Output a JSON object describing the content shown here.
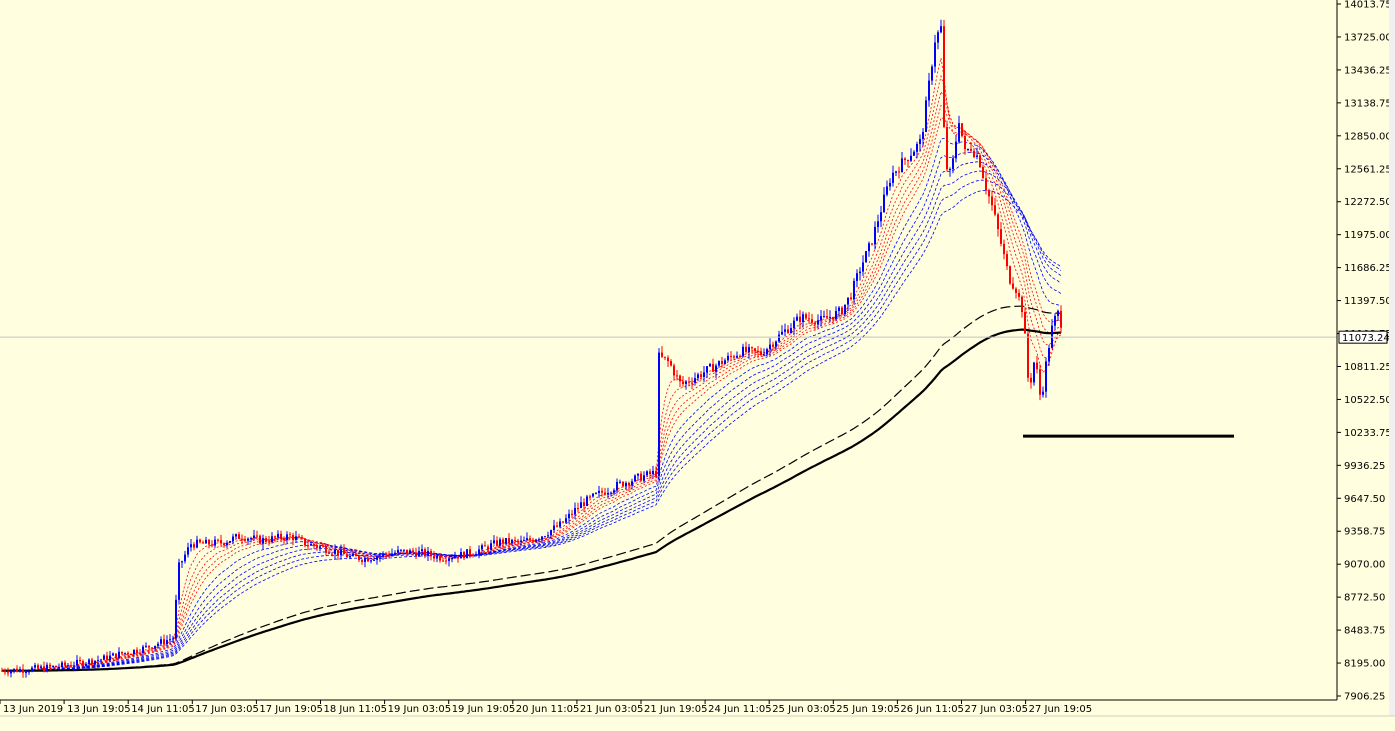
{
  "colors": {
    "background": "#ffffe0",
    "bull_candle": "#0000ff",
    "bear_candle": "#ff0000",
    "axis": "#000000",
    "current_price_line": "#c0c0c0",
    "ma_fast": "#ff0000",
    "ma_slow": "#0000ff",
    "ma_long": "#000000"
  },
  "chart_data": {
    "type": "candlestick",
    "y_axis_ticks": [
      "14013.75",
      "13725.00",
      "13436.25",
      "13138.75",
      "12850.00",
      "12561.25",
      "12272.50",
      "11975.00",
      "11686.25",
      "11397.50",
      "11108.75",
      "10811.25",
      "10522.50",
      "10233.75",
      "9936.25",
      "9647.50",
      "9358.75",
      "9070.00",
      "8772.50",
      "8483.75",
      "8195.00",
      "7906.25"
    ],
    "x_axis_ticks": [
      "13 Jun 2019",
      "13 Jun 19:05",
      "14 Jun 11:05",
      "17 Jun 03:05",
      "17 Jun 19:05",
      "18 Jun 11:05",
      "19 Jun 03:05",
      "19 Jun 19:05",
      "20 Jun 11:05",
      "21 Jun 03:05",
      "21 Jun 19:05",
      "24 Jun 11:05",
      "25 Jun 03:05",
      "25 Jun 19:05",
      "26 Jun 11:05",
      "27 Jun 03:05",
      "27 Jun 19:05"
    ],
    "ylim": [
      7906.25,
      14013.75
    ],
    "current_price": "11073.24",
    "current_price_value": 11073.24,
    "support_level": 10200,
    "grid": false,
    "price_path": [
      [
        0,
        8130
      ],
      [
        20,
        8140
      ],
      [
        40,
        8150
      ],
      [
        60,
        8170
      ],
      [
        80,
        8200
      ],
      [
        100,
        8230
      ],
      [
        120,
        8280
      ],
      [
        140,
        8320
      ],
      [
        160,
        8380
      ],
      [
        172,
        8420
      ],
      [
        178,
        9050
      ],
      [
        190,
        9250
      ],
      [
        205,
        9250
      ],
      [
        220,
        9260
      ],
      [
        240,
        9320
      ],
      [
        260,
        9280
      ],
      [
        275,
        9300
      ],
      [
        290,
        9320
      ],
      [
        305,
        9250
      ],
      [
        320,
        9220
      ],
      [
        335,
        9180
      ],
      [
        350,
        9130
      ],
      [
        365,
        9120
      ],
      [
        380,
        9150
      ],
      [
        400,
        9180
      ],
      [
        420,
        9170
      ],
      [
        440,
        9130
      ],
      [
        460,
        9150
      ],
      [
        480,
        9200
      ],
      [
        500,
        9270
      ],
      [
        520,
        9260
      ],
      [
        540,
        9320
      ],
      [
        560,
        9420
      ],
      [
        580,
        9600
      ],
      [
        600,
        9700
      ],
      [
        620,
        9780
      ],
      [
        640,
        9840
      ],
      [
        655,
        9880
      ],
      [
        658,
        10900
      ],
      [
        668,
        10850
      ],
      [
        680,
        10650
      ],
      [
        700,
        10750
      ],
      [
        720,
        10850
      ],
      [
        740,
        10950
      ],
      [
        760,
        10930
      ],
      [
        780,
        11100
      ],
      [
        800,
        11250
      ],
      [
        820,
        11220
      ],
      [
        840,
        11300
      ],
      [
        850,
        11450
      ],
      [
        860,
        11700
      ],
      [
        870,
        11900
      ],
      [
        880,
        12200
      ],
      [
        890,
        12500
      ],
      [
        900,
        12600
      ],
      [
        910,
        12700
      ],
      [
        920,
        12800
      ],
      [
        928,
        13300
      ],
      [
        934,
        13700
      ],
      [
        940,
        13800
      ],
      [
        944,
        12600
      ],
      [
        950,
        12500
      ],
      [
        958,
        13000
      ],
      [
        964,
        12700
      ],
      [
        970,
        12750
      ],
      [
        978,
        12650
      ],
      [
        985,
        12400
      ],
      [
        992,
        12200
      ],
      [
        1000,
        11900
      ],
      [
        1008,
        11600
      ],
      [
        1015,
        11500
      ],
      [
        1022,
        11300
      ],
      [
        1028,
        10600
      ],
      [
        1034,
        10900
      ],
      [
        1040,
        10500
      ],
      [
        1046,
        10900
      ],
      [
        1052,
        11200
      ],
      [
        1058,
        11300
      ],
      [
        1062,
        11100
      ]
    ]
  }
}
